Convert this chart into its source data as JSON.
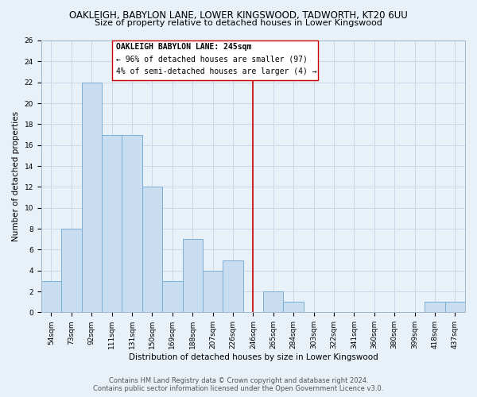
{
  "title": "OAKLEIGH, BABYLON LANE, LOWER KINGSWOOD, TADWORTH, KT20 6UU",
  "subtitle": "Size of property relative to detached houses in Lower Kingswood",
  "xlabel": "Distribution of detached houses by size in Lower Kingswood",
  "ylabel": "Number of detached properties",
  "bar_labels": [
    "54sqm",
    "73sqm",
    "92sqm",
    "111sqm",
    "131sqm",
    "150sqm",
    "169sqm",
    "188sqm",
    "207sqm",
    "226sqm",
    "246sqm",
    "265sqm",
    "284sqm",
    "303sqm",
    "322sqm",
    "341sqm",
    "360sqm",
    "380sqm",
    "399sqm",
    "418sqm",
    "437sqm"
  ],
  "bar_values": [
    3,
    8,
    22,
    17,
    17,
    12,
    3,
    7,
    4,
    5,
    0,
    2,
    1,
    0,
    0,
    0,
    0,
    0,
    0,
    1,
    1
  ],
  "bar_color": "#c8ddef",
  "bar_edge_color": "#7bafd4",
  "annotation_text_line1": "OAKLEIGH BABYLON LANE: 245sqm",
  "annotation_text_line2": "← 96% of detached houses are smaller (97)",
  "annotation_text_line3": "4% of semi-detached houses are larger (4) →",
  "vline_color": "#cc0000",
  "annotation_box_color": "#ffffff",
  "annotation_box_edge": "#cc0000",
  "ylim": [
    0,
    26
  ],
  "yticks": [
    0,
    2,
    4,
    6,
    8,
    10,
    12,
    14,
    16,
    18,
    20,
    22,
    24,
    26
  ],
  "grid_color": "#c8d8e8",
  "bg_color": "#e8f0f8",
  "footer_line1": "Contains HM Land Registry data © Crown copyright and database right 2024.",
  "footer_line2": "Contains public sector information licensed under the Open Government Licence v3.0.",
  "title_fontsize": 8.5,
  "subtitle_fontsize": 8,
  "ylabel_fontsize": 7.5,
  "xlabel_fontsize": 7.5,
  "tick_fontsize": 6.5,
  "footer_fontsize": 6,
  "annotation_fontsize": 7
}
